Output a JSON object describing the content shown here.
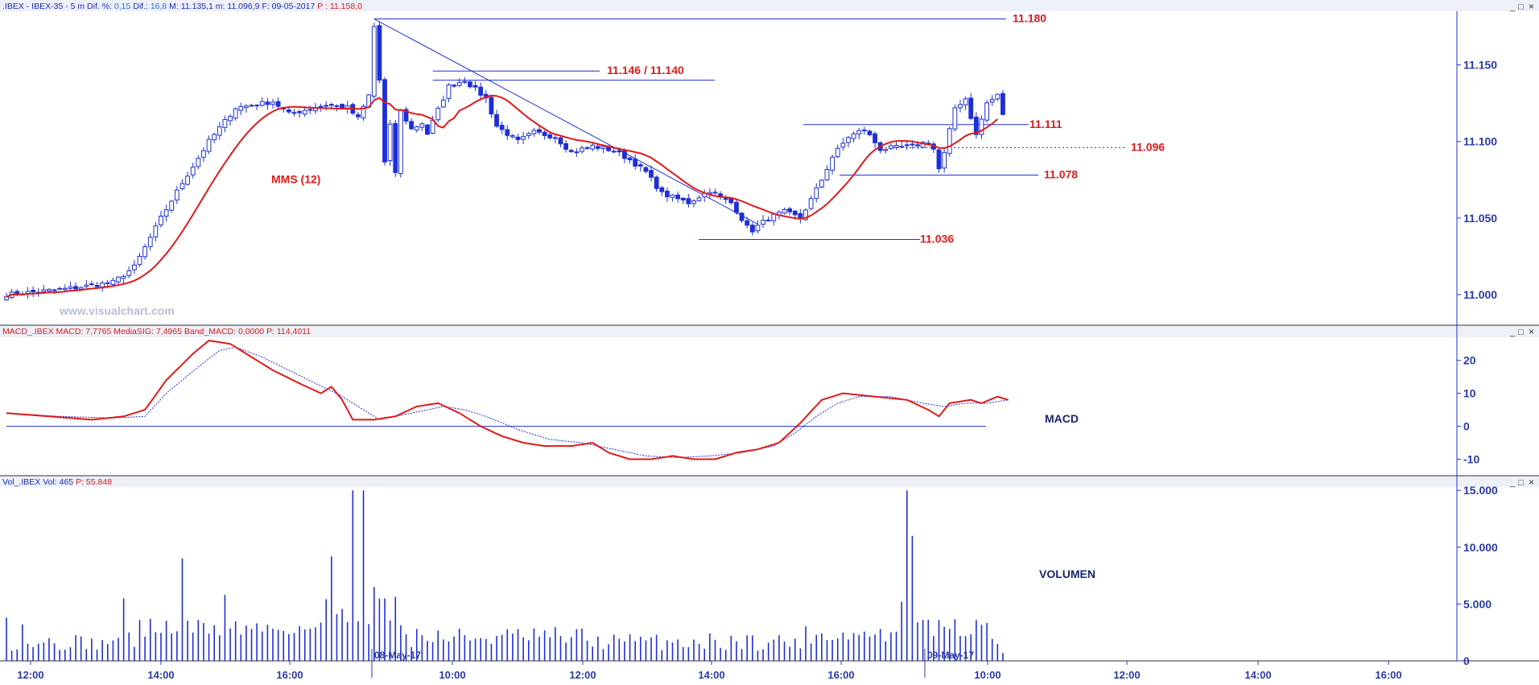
{
  "window_controls": {
    "minimize": "_",
    "restore": "□",
    "close": "×"
  },
  "price_panel": {
    "header": {
      "p1": ".IBEX - IBEX-35 - 5 m  Dif. %: ",
      "p2": "0,15",
      "p3": "  Dif.: ",
      "p4": "16,8",
      "p5": "  M: 11.135,1  m: 11.096,9  F: 09-05-2017  ",
      "p6": "P : 11.158,0"
    },
    "watermark": "www.visualchart.com",
    "annotations": [
      {
        "text": "11.180",
        "price": 11180
      },
      {
        "text": "11.146 / 11.140",
        "price": 11146
      },
      {
        "text": "11.111",
        "price": 11111
      },
      {
        "text": "11.096",
        "price": 11096
      },
      {
        "text": "11.078",
        "price": 11078
      },
      {
        "text": "11.036",
        "price": 11036
      },
      {
        "text": "MMS (12)",
        "price": 11075
      }
    ],
    "y_ticks": [
      {
        "label": "11.150",
        "value": 11150
      },
      {
        "label": "11.100",
        "value": 11100
      },
      {
        "label": "11.050",
        "value": 11050
      },
      {
        "label": "11.000",
        "value": 11000
      }
    ]
  },
  "macd_panel": {
    "header": {
      "p1": "MACD_.IBEX  MACD: 7,7765  MediaSIG: 7,4965  Band_MACD: 0,0000  ",
      "p2": "P: 114,4011"
    },
    "label": "MACD",
    "y_ticks": [
      {
        "label": "20",
        "value": 20
      },
      {
        "label": "10",
        "value": 10
      },
      {
        "label": "0",
        "value": 0
      },
      {
        "label": "-10",
        "value": -10
      }
    ]
  },
  "volume_panel": {
    "header": {
      "p1": "Vol_.IBEX  Vol: 465  ",
      "p2": "P: 55.848"
    },
    "label": "VOLUMEN",
    "y_ticks": [
      {
        "label": "15.000",
        "value": 15000
      },
      {
        "label": "10.000",
        "value": 10000
      },
      {
        "label": "5.000",
        "value": 5000
      },
      {
        "label": "0",
        "value": 0
      }
    ]
  },
  "x_axis": {
    "time_ticks": [
      "12:00",
      "14:00",
      "16:00",
      "10:00",
      "12:00",
      "14:00",
      "16:00",
      "10:00",
      "12:00",
      "14:00",
      "16:00"
    ],
    "date_markers": [
      "08-May-17",
      "09-May-17"
    ]
  },
  "chart_data": {
    "type": "candlestick",
    "instrument": ".IBEX - IBEX-35",
    "timeframe": "5 m",
    "price_ylim": [
      10980,
      11185
    ],
    "sessions": [
      {
        "start": 0,
        "end": 72
      },
      {
        "start": 73,
        "end": 173
      },
      {
        "start": 174,
        "end": 186
      }
    ],
    "price_path": [
      [
        0,
        11000
      ],
      [
        6,
        11002
      ],
      [
        12,
        11004
      ],
      [
        20,
        11008
      ],
      [
        24,
        11018
      ],
      [
        29,
        11050
      ],
      [
        33,
        11073
      ],
      [
        38,
        11100
      ],
      [
        43,
        11122
      ],
      [
        50,
        11126
      ],
      [
        53,
        11118
      ],
      [
        60,
        11124
      ],
      [
        64,
        11122
      ],
      [
        66,
        11115
      ],
      [
        68,
        11130
      ],
      [
        69,
        11175
      ],
      [
        70,
        11140
      ],
      [
        71,
        11086
      ],
      [
        72,
        11110
      ],
      [
        73,
        11080
      ],
      [
        74,
        11120
      ],
      [
        76,
        11108
      ],
      [
        78,
        11112
      ],
      [
        79,
        11105
      ],
      [
        83,
        11136
      ],
      [
        86,
        11140
      ],
      [
        88,
        11134
      ],
      [
        90,
        11128
      ],
      [
        92,
        11110
      ],
      [
        96,
        11100
      ],
      [
        99,
        11106
      ],
      [
        103,
        11103
      ],
      [
        106,
        11093
      ],
      [
        110,
        11097
      ],
      [
        114,
        11094
      ],
      [
        117,
        11088
      ],
      [
        120,
        11080
      ],
      [
        123,
        11066
      ],
      [
        128,
        11060
      ],
      [
        132,
        11068
      ],
      [
        134,
        11063
      ],
      [
        136,
        11060
      ],
      [
        137,
        11055
      ],
      [
        139,
        11044
      ],
      [
        140,
        11042
      ],
      [
        143,
        11050
      ],
      [
        146,
        11054
      ],
      [
        149,
        11050
      ],
      [
        151,
        11062
      ],
      [
        153,
        11075
      ],
      [
        155,
        11090
      ],
      [
        158,
        11103
      ],
      [
        161,
        11108
      ],
      [
        164,
        11095
      ],
      [
        170,
        11097
      ],
      [
        173,
        11100
      ],
      [
        174,
        11095
      ],
      [
        175,
        11082
      ],
      [
        176,
        11092
      ],
      [
        178,
        11122
      ],
      [
        180,
        11128
      ],
      [
        182,
        11104
      ],
      [
        184,
        11125
      ],
      [
        186,
        11130
      ],
      [
        187,
        11118
      ]
    ],
    "ma_label": "MMS (12)",
    "ma_period": 12,
    "macd_ylim": [
      -15,
      27
    ],
    "macd_path": [
      [
        0,
        4
      ],
      [
        8,
        3
      ],
      [
        16,
        2
      ],
      [
        22,
        3
      ],
      [
        26,
        5
      ],
      [
        30,
        14
      ],
      [
        35,
        22
      ],
      [
        38,
        26
      ],
      [
        42,
        25
      ],
      [
        46,
        21
      ],
      [
        50,
        17
      ],
      [
        55,
        13
      ],
      [
        59,
        10
      ],
      [
        61,
        12
      ],
      [
        63,
        8
      ],
      [
        65,
        2
      ],
      [
        69,
        2
      ],
      [
        73,
        3
      ],
      [
        77,
        6
      ],
      [
        81,
        7
      ],
      [
        85,
        4
      ],
      [
        89,
        0
      ],
      [
        93,
        -3
      ],
      [
        97,
        -5
      ],
      [
        101,
        -6
      ],
      [
        106,
        -6
      ],
      [
        110,
        -5
      ],
      [
        113,
        -8
      ],
      [
        117,
        -10
      ],
      [
        121,
        -10
      ],
      [
        125,
        -9
      ],
      [
        129,
        -10
      ],
      [
        133,
        -10
      ],
      [
        137,
        -8
      ],
      [
        141,
        -7
      ],
      [
        145,
        -5
      ],
      [
        149,
        1
      ],
      [
        153,
        8
      ],
      [
        157,
        10
      ],
      [
        163,
        9
      ],
      [
        169,
        8
      ],
      [
        173,
        5
      ],
      [
        175,
        3
      ],
      [
        177,
        7
      ],
      [
        181,
        8
      ],
      [
        183,
        7
      ],
      [
        186,
        9
      ],
      [
        188,
        8
      ]
    ],
    "signal_path": [
      [
        0,
        4
      ],
      [
        10,
        3
      ],
      [
        20,
        2.5
      ],
      [
        26,
        3
      ],
      [
        30,
        10
      ],
      [
        36,
        18
      ],
      [
        40,
        23
      ],
      [
        43,
        24
      ],
      [
        48,
        21
      ],
      [
        53,
        17
      ],
      [
        58,
        13
      ],
      [
        62,
        10
      ],
      [
        66,
        6
      ],
      [
        70,
        2
      ],
      [
        76,
        4
      ],
      [
        82,
        6
      ],
      [
        86,
        5
      ],
      [
        90,
        3
      ],
      [
        96,
        -1
      ],
      [
        102,
        -4
      ],
      [
        108,
        -5
      ],
      [
        114,
        -7
      ],
      [
        120,
        -9
      ],
      [
        126,
        -9.5
      ],
      [
        132,
        -9
      ],
      [
        138,
        -8
      ],
      [
        144,
        -6
      ],
      [
        148,
        -2
      ],
      [
        152,
        3
      ],
      [
        156,
        7
      ],
      [
        160,
        9
      ],
      [
        166,
        9
      ],
      [
        172,
        7
      ],
      [
        176,
        6
      ],
      [
        180,
        7
      ],
      [
        184,
        7
      ],
      [
        188,
        8
      ]
    ],
    "volume_ylim": [
      0,
      15300
    ],
    "volume_bars": [
      [
        0,
        3800
      ],
      [
        3,
        3200
      ],
      [
        6,
        1500
      ],
      [
        12,
        1200
      ],
      [
        20,
        1800
      ],
      [
        22,
        5500
      ],
      [
        23,
        2500
      ],
      [
        33,
        9000
      ],
      [
        41,
        5800
      ],
      [
        61,
        9200
      ],
      [
        65,
        15000
      ],
      [
        67,
        15000
      ],
      [
        69,
        6500
      ],
      [
        71,
        5500
      ],
      [
        89,
        2000
      ],
      [
        120,
        1800
      ],
      [
        166,
        2500
      ],
      [
        168,
        5200
      ],
      [
        169,
        15000
      ],
      [
        170,
        11000
      ],
      [
        172,
        3600
      ],
      [
        176,
        3000
      ],
      [
        179,
        2200
      ],
      [
        186,
        1500
      ],
      [
        187,
        700
      ]
    ]
  }
}
